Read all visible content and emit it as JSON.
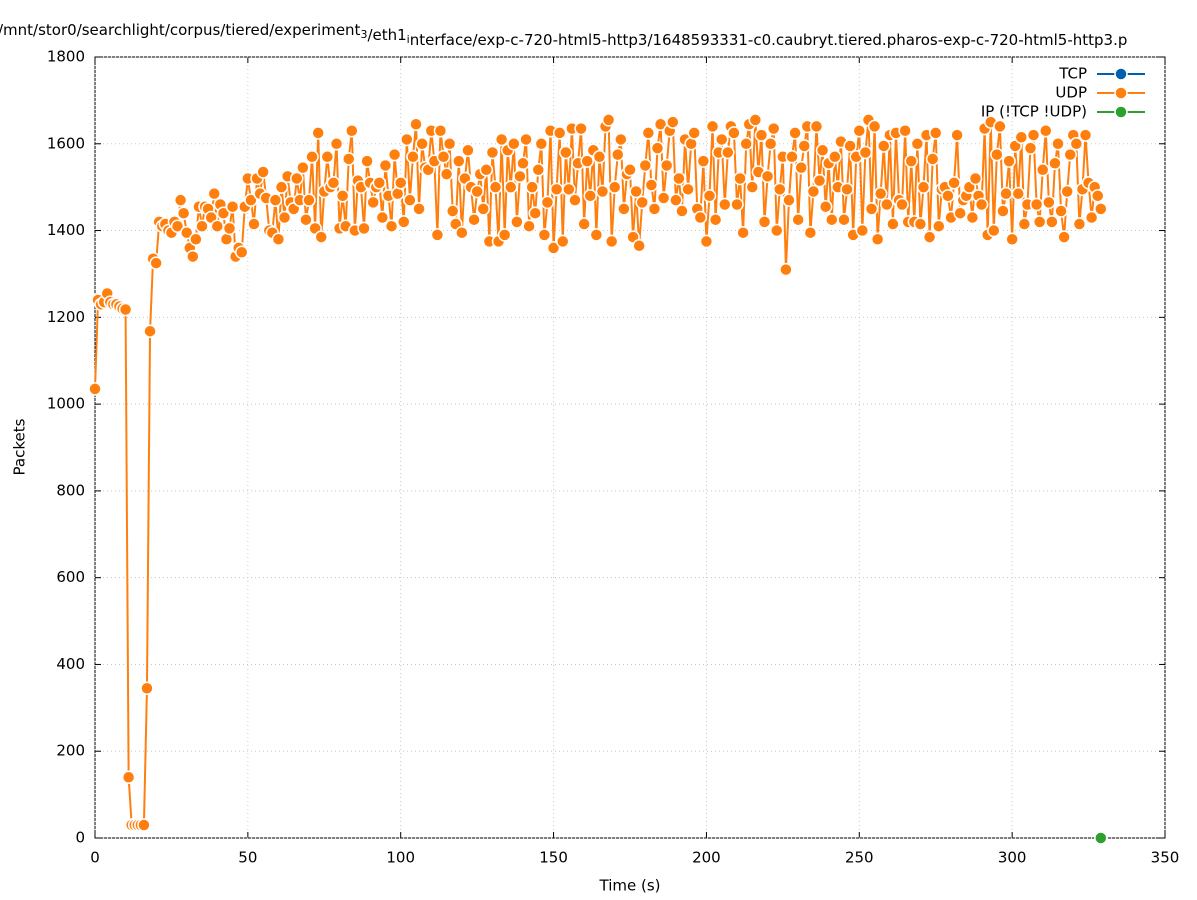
{
  "chart_data": {
    "type": "line",
    "title": "/mnt/stor0/searchlight/corpus/tiered/experiment_3/eth1_interface/exp-c-720-html5-http3/1648593331-c0.caubryt.tiered.pharos-exp-c-720-html5-http3.p",
    "xlabel": "Time (s)",
    "ylabel": "Packets",
    "xlim": [
      0,
      350
    ],
    "xticks": [
      0,
      50,
      100,
      150,
      200,
      250,
      300,
      350
    ],
    "ylim": [
      0,
      1800
    ],
    "yticks": [
      0,
      200,
      400,
      600,
      800,
      1000,
      1200,
      1400,
      1600,
      1800
    ],
    "grid": true,
    "legend": "top-right",
    "series": [
      {
        "name": "TCP",
        "color": "#0060ad",
        "x": [],
        "values": []
      },
      {
        "name": "UDP",
        "color": "#ff7f0e",
        "x": [
          0,
          1,
          2,
          3,
          4,
          5,
          6,
          7,
          8,
          9,
          10,
          11,
          12,
          13,
          14,
          15,
          16,
          17,
          18,
          19,
          20,
          21,
          22,
          23,
          24,
          25,
          26,
          27,
          28,
          29,
          30,
          31,
          32,
          33,
          34,
          35,
          36,
          37,
          38,
          39,
          40,
          41,
          42,
          43,
          44,
          45,
          46,
          47,
          48,
          49,
          50,
          51,
          52,
          53,
          54,
          55,
          56,
          57,
          58,
          59,
          60,
          61,
          62,
          63,
          64,
          65,
          66,
          67,
          68,
          69,
          70,
          71,
          72,
          73,
          74,
          75,
          76,
          77,
          78,
          79,
          80,
          81,
          82,
          83,
          84,
          85,
          86,
          87,
          88,
          89,
          90,
          91,
          92,
          93,
          94,
          95,
          96,
          97,
          98,
          99,
          100,
          101,
          102,
          103,
          104,
          105,
          106,
          107,
          108,
          109,
          110,
          111,
          112,
          113,
          114,
          115,
          116,
          117,
          118,
          119,
          120,
          121,
          122,
          123,
          124,
          125,
          126,
          127,
          128,
          129,
          130,
          131,
          132,
          133,
          134,
          135,
          136,
          137,
          138,
          139,
          140,
          141,
          142,
          143,
          144,
          145,
          146,
          147,
          148,
          149,
          150,
          151,
          152,
          153,
          154,
          155,
          156,
          157,
          158,
          159,
          160,
          161,
          162,
          163,
          164,
          165,
          166,
          167,
          168,
          169,
          170,
          171,
          172,
          173,
          174,
          175,
          176,
          177,
          178,
          179,
          180,
          181,
          182,
          183,
          184,
          185,
          186,
          187,
          188,
          189,
          190,
          191,
          192,
          193,
          194,
          195,
          196,
          197,
          198,
          199,
          200,
          201,
          202,
          203,
          204,
          205,
          206,
          207,
          208,
          209,
          210,
          211,
          212,
          213,
          214,
          215,
          216,
          217,
          218,
          219,
          220,
          221,
          222,
          223,
          224,
          225,
          226,
          227,
          228,
          229,
          230,
          231,
          232,
          233,
          234,
          235,
          236,
          237,
          238,
          239,
          240,
          241,
          242,
          243,
          244,
          245,
          246,
          247,
          248,
          249,
          250,
          251,
          252,
          253,
          254,
          255,
          256,
          257,
          258,
          259,
          260,
          261,
          262,
          263,
          264,
          265,
          266,
          267,
          268,
          269,
          270,
          271,
          272,
          273,
          274,
          275,
          276,
          277,
          278,
          279,
          280,
          281,
          282,
          283,
          284,
          285,
          286,
          287,
          288,
          289,
          290,
          291,
          292,
          293,
          294,
          295,
          296,
          297,
          298,
          299,
          300,
          301,
          302,
          303,
          304,
          305,
          306,
          307,
          308,
          309,
          310,
          311,
          312,
          313,
          314,
          315,
          316,
          317,
          318,
          319,
          320,
          321,
          322,
          323,
          324,
          325,
          326,
          327,
          328,
          329
        ],
        "values": [
          1035,
          1240,
          1230,
          1235,
          1255,
          1235,
          1230,
          1230,
          1225,
          1220,
          1218,
          140,
          30,
          30,
          30,
          30,
          30,
          345,
          1168,
          1335,
          1325,
          1420,
          1410,
          1415,
          1400,
          1395,
          1420,
          1410,
          1470,
          1440,
          1395,
          1360,
          1340,
          1380,
          1455,
          1410,
          1455,
          1450,
          1430,
          1485,
          1410,
          1460,
          1440,
          1380,
          1405,
          1455,
          1340,
          1360,
          1350,
          1455,
          1520,
          1470,
          1415,
          1520,
          1485,
          1535,
          1475,
          1400,
          1395,
          1470,
          1380,
          1500,
          1430,
          1525,
          1465,
          1450,
          1520,
          1470,
          1545,
          1425,
          1470,
          1570,
          1405,
          1625,
          1385,
          1490,
          1570,
          1500,
          1510,
          1600,
          1405,
          1480,
          1410,
          1565,
          1630,
          1400,
          1515,
          1500,
          1405,
          1560,
          1510,
          1465,
          1500,
          1510,
          1430,
          1550,
          1480,
          1410,
          1575,
          1485,
          1510,
          1420,
          1610,
          1470,
          1570,
          1645,
          1450,
          1600,
          1545,
          1540,
          1630,
          1560,
          1390,
          1630,
          1570,
          1530,
          1600,
          1445,
          1415,
          1560,
          1395,
          1520,
          1585,
          1500,
          1425,
          1490,
          1530,
          1450,
          1540,
          1375,
          1580,
          1500,
          1375,
          1610,
          1390,
          1585,
          1500,
          1600,
          1420,
          1525,
          1555,
          1610,
          1410,
          1500,
          1440,
          1540,
          1600,
          1390,
          1465,
          1630,
          1360,
          1495,
          1625,
          1375,
          1580,
          1495,
          1635,
          1470,
          1555,
          1635,
          1415,
          1560,
          1480,
          1585,
          1390,
          1570,
          1490,
          1640,
          1655,
          1375,
          1500,
          1575,
          1610,
          1450,
          1530,
          1540,
          1385,
          1490,
          1365,
          1465,
          1550,
          1625,
          1505,
          1450,
          1590,
          1645,
          1475,
          1550,
          1630,
          1650,
          1470,
          1520,
          1445,
          1610,
          1495,
          1600,
          1625,
          1450,
          1430,
          1560,
          1375,
          1480,
          1640,
          1425,
          1580,
          1610,
          1460,
          1580,
          1640,
          1625,
          1460,
          1520,
          1395,
          1600,
          1645,
          1500,
          1655,
          1535,
          1620,
          1420,
          1525,
          1600,
          1635,
          1400,
          1495,
          1570,
          1310,
          1470,
          1570,
          1625,
          1425,
          1545,
          1595,
          1640,
          1395,
          1490,
          1640,
          1515,
          1585,
          1455,
          1555,
          1425,
          1570,
          1500,
          1605,
          1425,
          1495,
          1595,
          1390,
          1570,
          1630,
          1400,
          1580,
          1655,
          1450,
          1640,
          1380,
          1485,
          1595,
          1460,
          1620,
          1415,
          1625,
          1470,
          1460,
          1630,
          1420,
          1560,
          1420,
          1600,
          1415,
          1500,
          1620,
          1385,
          1565,
          1625,
          1410,
          1495,
          1500,
          1480,
          1430,
          1510,
          1620,
          1440,
          1470,
          1480,
          1500,
          1430,
          1520,
          1480,
          1460,
          1635,
          1390,
          1650,
          1400,
          1575,
          1640,
          1445,
          1485,
          1560,
          1380,
          1595,
          1485,
          1615,
          1415,
          1460,
          1590,
          1620,
          1460,
          1420,
          1540,
          1630,
          1465,
          1420,
          1555,
          1600,
          1445,
          1385,
          1490,
          1575,
          1620,
          1600,
          1415,
          1495,
          1620,
          1510,
          1430,
          1500,
          1480,
          1450
        ]
      },
      {
        "name": "IP (!TCP  !UDP)",
        "color": "#2ca02c",
        "x": [
          329
        ],
        "values": [
          0
        ]
      }
    ]
  }
}
